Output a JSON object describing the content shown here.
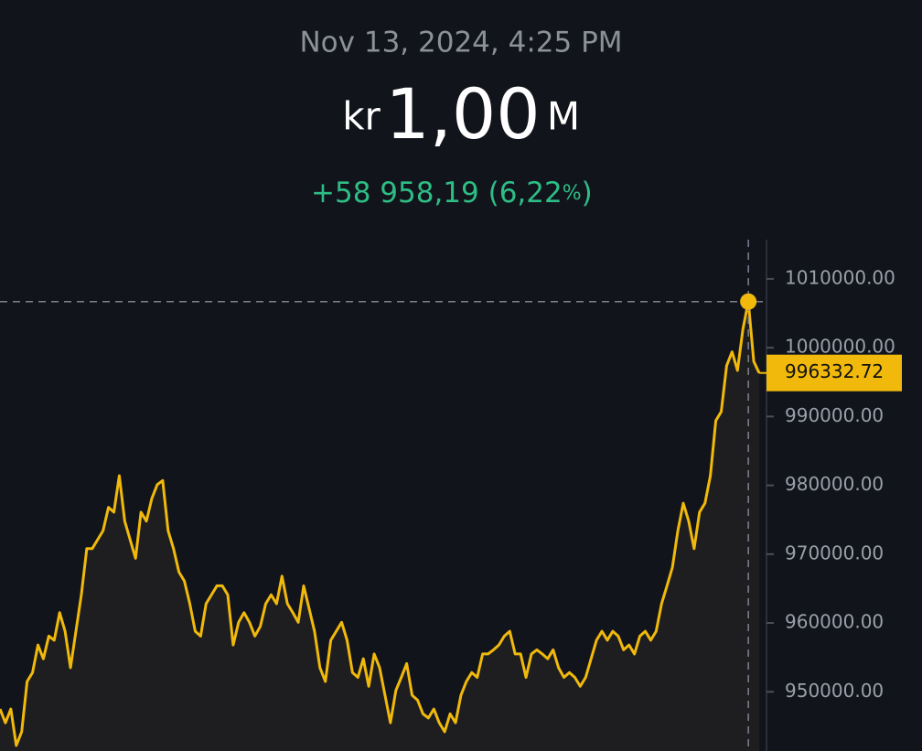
{
  "header": {
    "date": "Nov 13, 2024, 4:25 PM",
    "currency": "kr",
    "amount": "1,00",
    "unit": "M",
    "change": "+58 958,19 (6,22",
    "percent": "%",
    "close": ")"
  },
  "chart_data": {
    "type": "line",
    "color": "#f0b90b",
    "ylim": [
      941400,
      1015700
    ],
    "yticks": [
      {
        "value": 950000,
        "label": "950000.00"
      },
      {
        "value": 960000,
        "label": "960000.00"
      },
      {
        "value": 970000,
        "label": "970000.00"
      },
      {
        "value": 980000,
        "label": "980000.00"
      },
      {
        "value": 990000,
        "label": "990000.00"
      },
      {
        "value": 1000000,
        "label": "1000000.00"
      },
      {
        "value": 1010000,
        "label": "1010000.00"
      }
    ],
    "price_line": {
      "value": 996332.72,
      "label": "996332.72"
    },
    "values": [
      947500,
      945500,
      947500,
      942200,
      944200,
      951500,
      952800,
      956800,
      954800,
      958100,
      957500,
      961500,
      958800,
      953500,
      958800,
      964100,
      970800,
      970800,
      972100,
      973400,
      976800,
      976100,
      981400,
      974800,
      972100,
      969400,
      976100,
      974800,
      978100,
      980100,
      980700,
      973400,
      970800,
      967400,
      966100,
      962800,
      958800,
      958100,
      962800,
      964100,
      965400,
      965400,
      964100,
      956800,
      960100,
      961500,
      960100,
      958100,
      959500,
      962800,
      964100,
      962800,
      966800,
      962800,
      961500,
      960100,
      965400,
      962100,
      958800,
      953500,
      951500,
      957500,
      958800,
      960100,
      957500,
      952800,
      952100,
      954800,
      950800,
      955500,
      953500,
      949500,
      945500,
      950200,
      952100,
      954100,
      949500,
      948800,
      946800,
      946200,
      947500,
      945500,
      944200,
      946800,
      945500,
      949500,
      951500,
      952800,
      952100,
      955500,
      955500,
      956100,
      956800,
      958100,
      958800,
      955500,
      955500,
      952100,
      955500,
      956100,
      955500,
      954800,
      956100,
      953500,
      952100,
      952800,
      952100,
      950800,
      952100,
      954800,
      957500,
      958800,
      957500,
      958800,
      958100,
      956100,
      956800,
      955500,
      958100,
      958800,
      957500,
      958800,
      962800,
      965400,
      968100,
      973400,
      977400,
      974800,
      970800,
      976100,
      977400,
      981400,
      989400,
      990700,
      997400,
      999400,
      996700,
      1002700,
      1006700,
      998000,
      996332.72
    ]
  }
}
